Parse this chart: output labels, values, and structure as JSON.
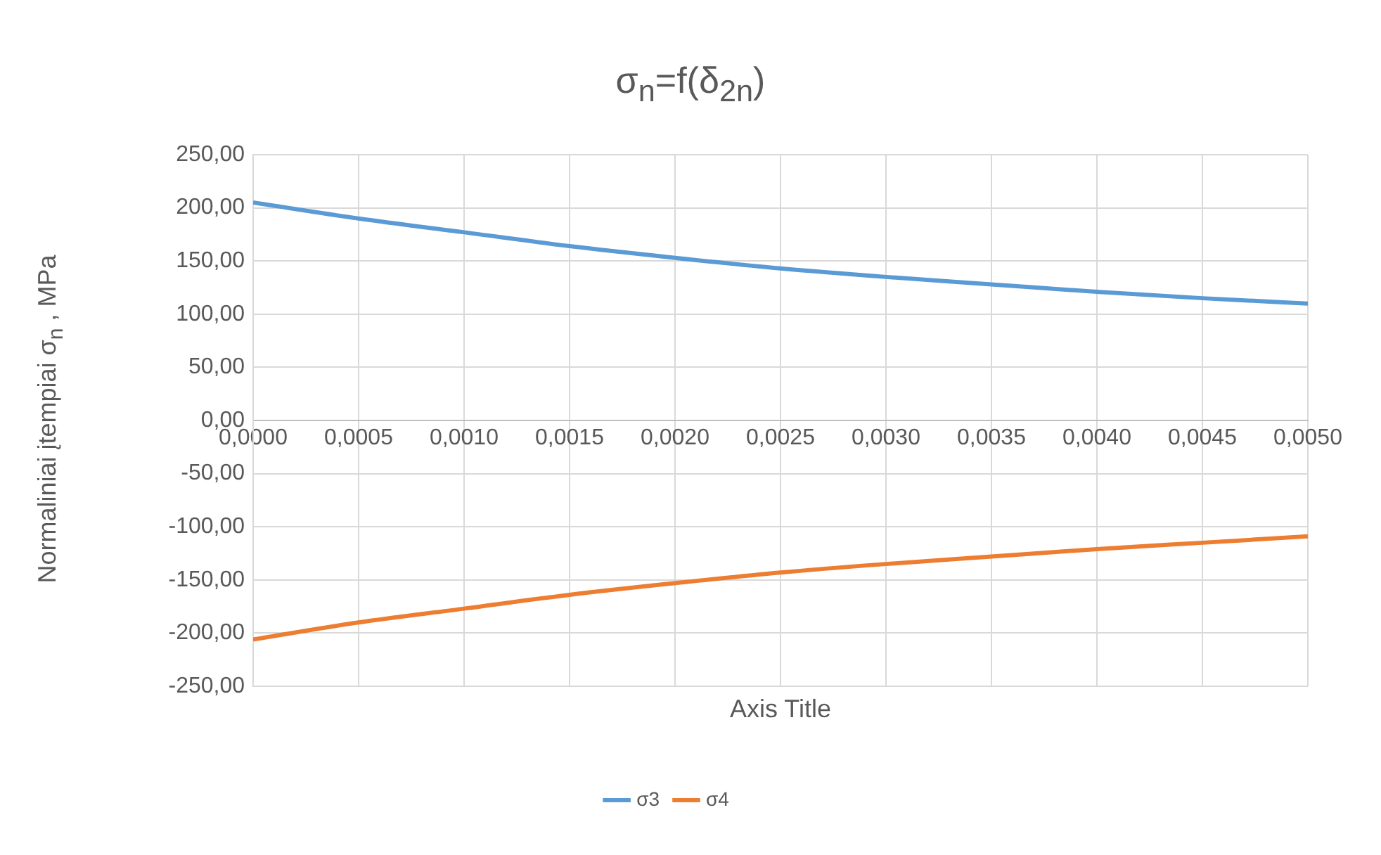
{
  "chart_data": {
    "type": "line",
    "title": "σ$_{n}$=f(δ$_{2n}$)",
    "xlabel": "Axis Title",
    "ylabel": "Normaliniai įtempiai σ$_{n}$ , MPa",
    "x": [
      0,
      0.0005,
      0.001,
      0.0015,
      0.002,
      0.0025,
      0.003,
      0.0035,
      0.004,
      0.0045,
      0.005
    ],
    "series": [
      {
        "name": "σ3",
        "color": "#5b9bd5",
        "values": [
          205,
          190,
          177,
          164,
          153,
          143,
          135,
          128,
          121,
          115,
          110
        ]
      },
      {
        "name": "σ4",
        "color": "#ed7d31",
        "values": [
          -206,
          -190,
          -177,
          -164,
          -153,
          -143,
          -135,
          -128,
          -121,
          -115,
          -109
        ]
      }
    ],
    "xlim": [
      0,
      0.005
    ],
    "xticks": [
      {
        "value": 0,
        "label": "0,0000"
      },
      {
        "value": 0.0005,
        "label": "0,0005"
      },
      {
        "value": 0.001,
        "label": "0,0010"
      },
      {
        "value": 0.0015,
        "label": "0,0015"
      },
      {
        "value": 0.002,
        "label": "0,0020"
      },
      {
        "value": 0.0025,
        "label": "0,0025"
      },
      {
        "value": 0.003,
        "label": "0,0030"
      },
      {
        "value": 0.0035,
        "label": "0,0035"
      },
      {
        "value": 0.004,
        "label": "0,0040"
      },
      {
        "value": 0.0045,
        "label": "0,0045"
      },
      {
        "value": 0.005,
        "label": "0,0050"
      }
    ],
    "ylim": [
      -250,
      250
    ],
    "yticks": [
      {
        "value": -250,
        "label": "-250,00"
      },
      {
        "value": -200,
        "label": "-200,00"
      },
      {
        "value": -150,
        "label": "-150,00"
      },
      {
        "value": -100,
        "label": "-100,00"
      },
      {
        "value": -50,
        "label": "-50,00"
      },
      {
        "value": 0,
        "label": "0,00"
      },
      {
        "value": 50,
        "label": "50,00"
      },
      {
        "value": 100,
        "label": "100,00"
      },
      {
        "value": 150,
        "label": "150,00"
      },
      {
        "value": 200,
        "label": "200,00"
      },
      {
        "value": 250,
        "label": "250,00"
      }
    ],
    "grid": true,
    "legend": "bottom",
    "marker": "none",
    "line_style": "solid"
  }
}
